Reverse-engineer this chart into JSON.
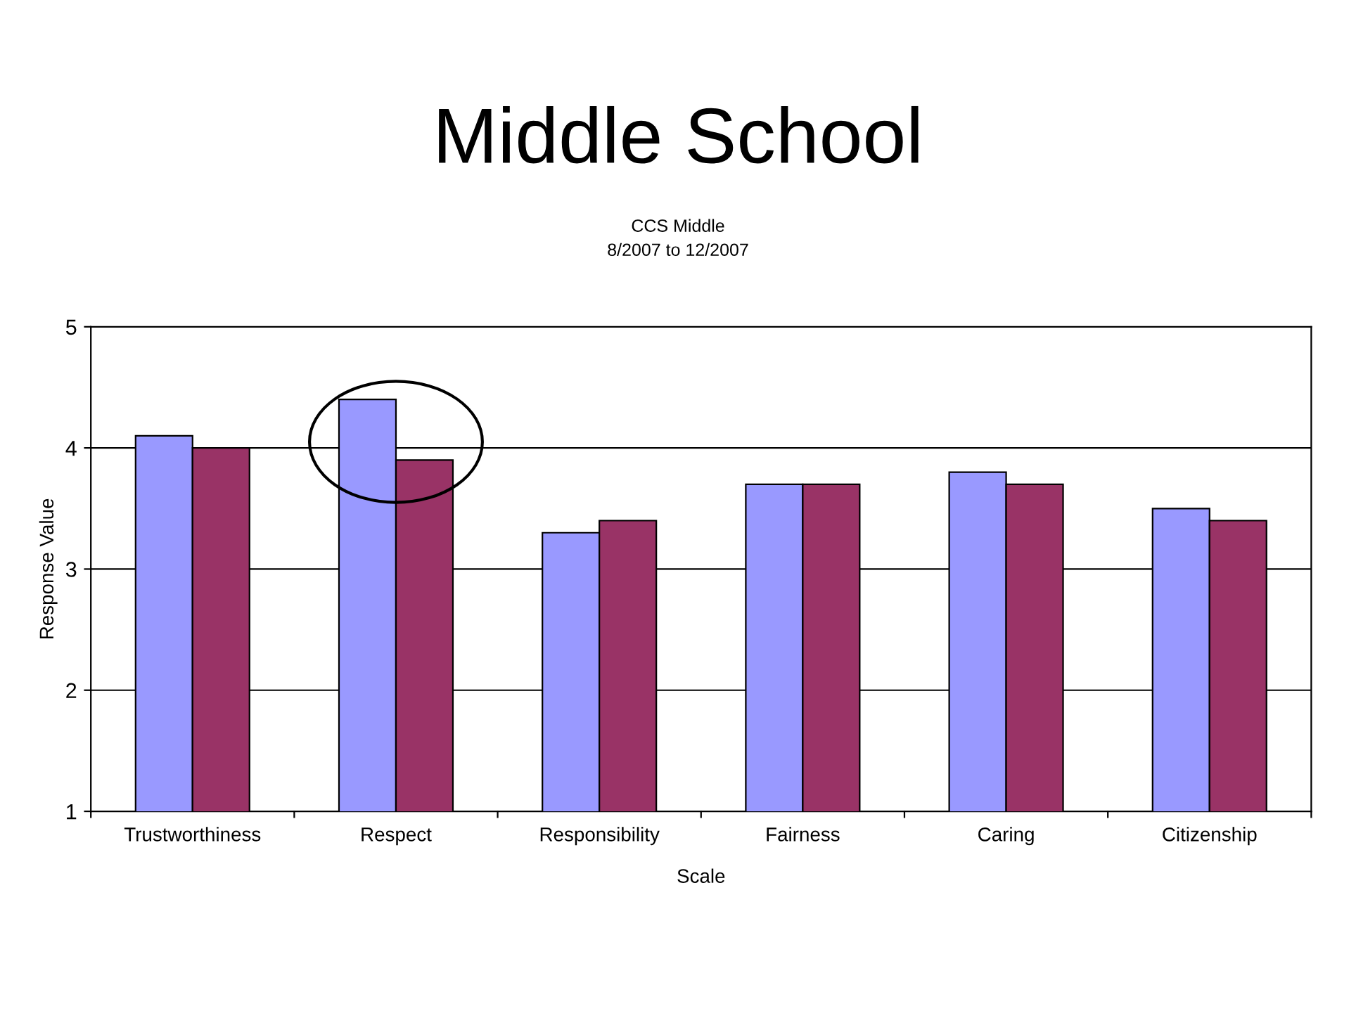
{
  "chart_data": {
    "type": "bar",
    "title": "Middle School",
    "subtitle": "CCS Middle\n8/2007 to 12/2007",
    "xlabel": "Scale",
    "ylabel": "Response Value",
    "categories": [
      "Trustworthiness",
      "Respect",
      "Responsibility",
      "Fairness",
      "Caring",
      "Citizenship"
    ],
    "series": [
      {
        "color": "#9999ff",
        "values": [
          4.1,
          4.4,
          3.3,
          3.7,
          3.8,
          3.5
        ]
      },
      {
        "color": "#993366",
        "values": [
          4.0,
          3.9,
          3.4,
          3.7,
          3.7,
          3.4
        ]
      }
    ],
    "ylim": [
      1,
      5
    ],
    "yticks": [
      1,
      2,
      3,
      4,
      5
    ],
    "grid": "y"
  }
}
